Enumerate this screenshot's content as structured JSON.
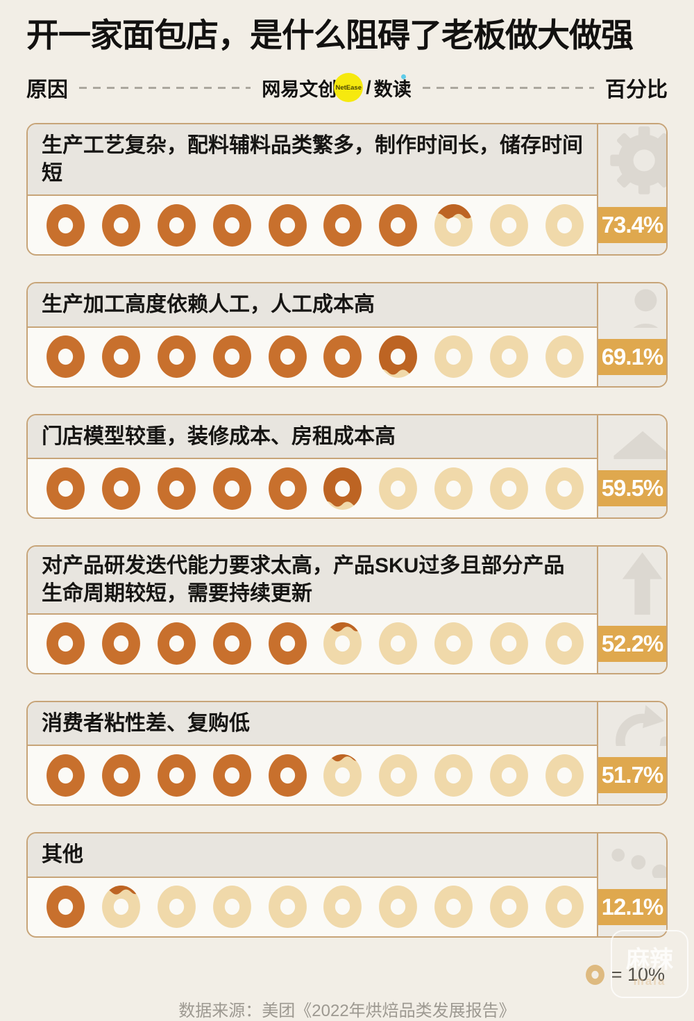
{
  "chart_data": {
    "type": "bar",
    "title": "开一家面包店，是什么阻碍了老板做大做强",
    "categories": [
      "生产工艺复杂，配料辅料品类繁多，制作时间长，储存时间短",
      "生产加工高度依赖人工，人工成本高",
      "门店模型较重，装修成本、房租成本高",
      "对产品研发迭代能力要求太高，产品SKU过多且部分产品生命周期较短，需要持续更新",
      "消费者粘性差、复购低",
      "其他"
    ],
    "values": [
      73.4,
      69.1,
      59.5,
      52.2,
      51.7,
      12.1
    ],
    "unit": "%",
    "xlim": [
      0,
      100
    ],
    "pictogram_unit": "1 donut = 10%",
    "legend_position": "bottom-right",
    "axis_left_label": "原因",
    "axis_right_label": "百分比",
    "source": "数据来源：美团《2022年烘焙品类发展报告》"
  },
  "title": "开一家面包店，是什么阻碍了老板做大做强",
  "header": {
    "left_label": "原因",
    "right_label": "百分比",
    "brand": {
      "name": "网易文创",
      "badge": "NetEase",
      "slash": "/",
      "sub": "数读"
    }
  },
  "rows": [
    {
      "label": "生产工艺复杂，配料辅料品类繁多，制作时间长，储存时间短",
      "percent": 73.4,
      "display": "73.4%",
      "icon": "gear-icon",
      "two_line": false
    },
    {
      "label": "生产加工高度依赖人工，人工成本高",
      "percent": 69.1,
      "display": "69.1%",
      "icon": "person-icon",
      "two_line": false
    },
    {
      "label": "门店模型较重，装修成本、房租成本高",
      "percent": 59.5,
      "display": "59.5%",
      "icon": "house-icon",
      "two_line": false
    },
    {
      "label": "对产品研发迭代能力要求太高，产品SKU过多且部分产品生命周期较短，需要持续更新",
      "percent": 52.2,
      "display": "52.2%",
      "icon": "arrow-up-icon",
      "two_line": true
    },
    {
      "label": "消费者粘性差、复购低",
      "percent": 51.7,
      "display": "51.7%",
      "icon": "refresh-icon",
      "two_line": false
    },
    {
      "label": "其他",
      "percent": 12.1,
      "display": "12.1%",
      "icon": "ellipsis-icon",
      "two_line": false
    }
  ],
  "legend": {
    "symbol": "donut-icon",
    "text": "= 10%"
  },
  "source": "数据来源：美团《2022年烘焙品类发展报告》",
  "watermark": {
    "line1": "麻辣",
    "line2": "mala"
  },
  "colors": {
    "page_bg": "#F2EEE6",
    "card_bg": "#FBFAF6",
    "strip_bg": "#E8E5DF",
    "card_border": "#C7A478",
    "side_bg": "#ECE9E3",
    "icon_gray": "#DCD8D1",
    "band_gold": "#DFA84E",
    "donut_full": "#C8702D",
    "donut_glaze": "#BD6423",
    "donut_empty": "#F0D9AA",
    "legend_donut": "#DEBA80",
    "title_text": "#121110",
    "dash_gray": "#ABA79E",
    "source_gray": "#9D9991",
    "badge_yellow": "#F6E90E",
    "blue_accent": "#4FC8E9"
  }
}
